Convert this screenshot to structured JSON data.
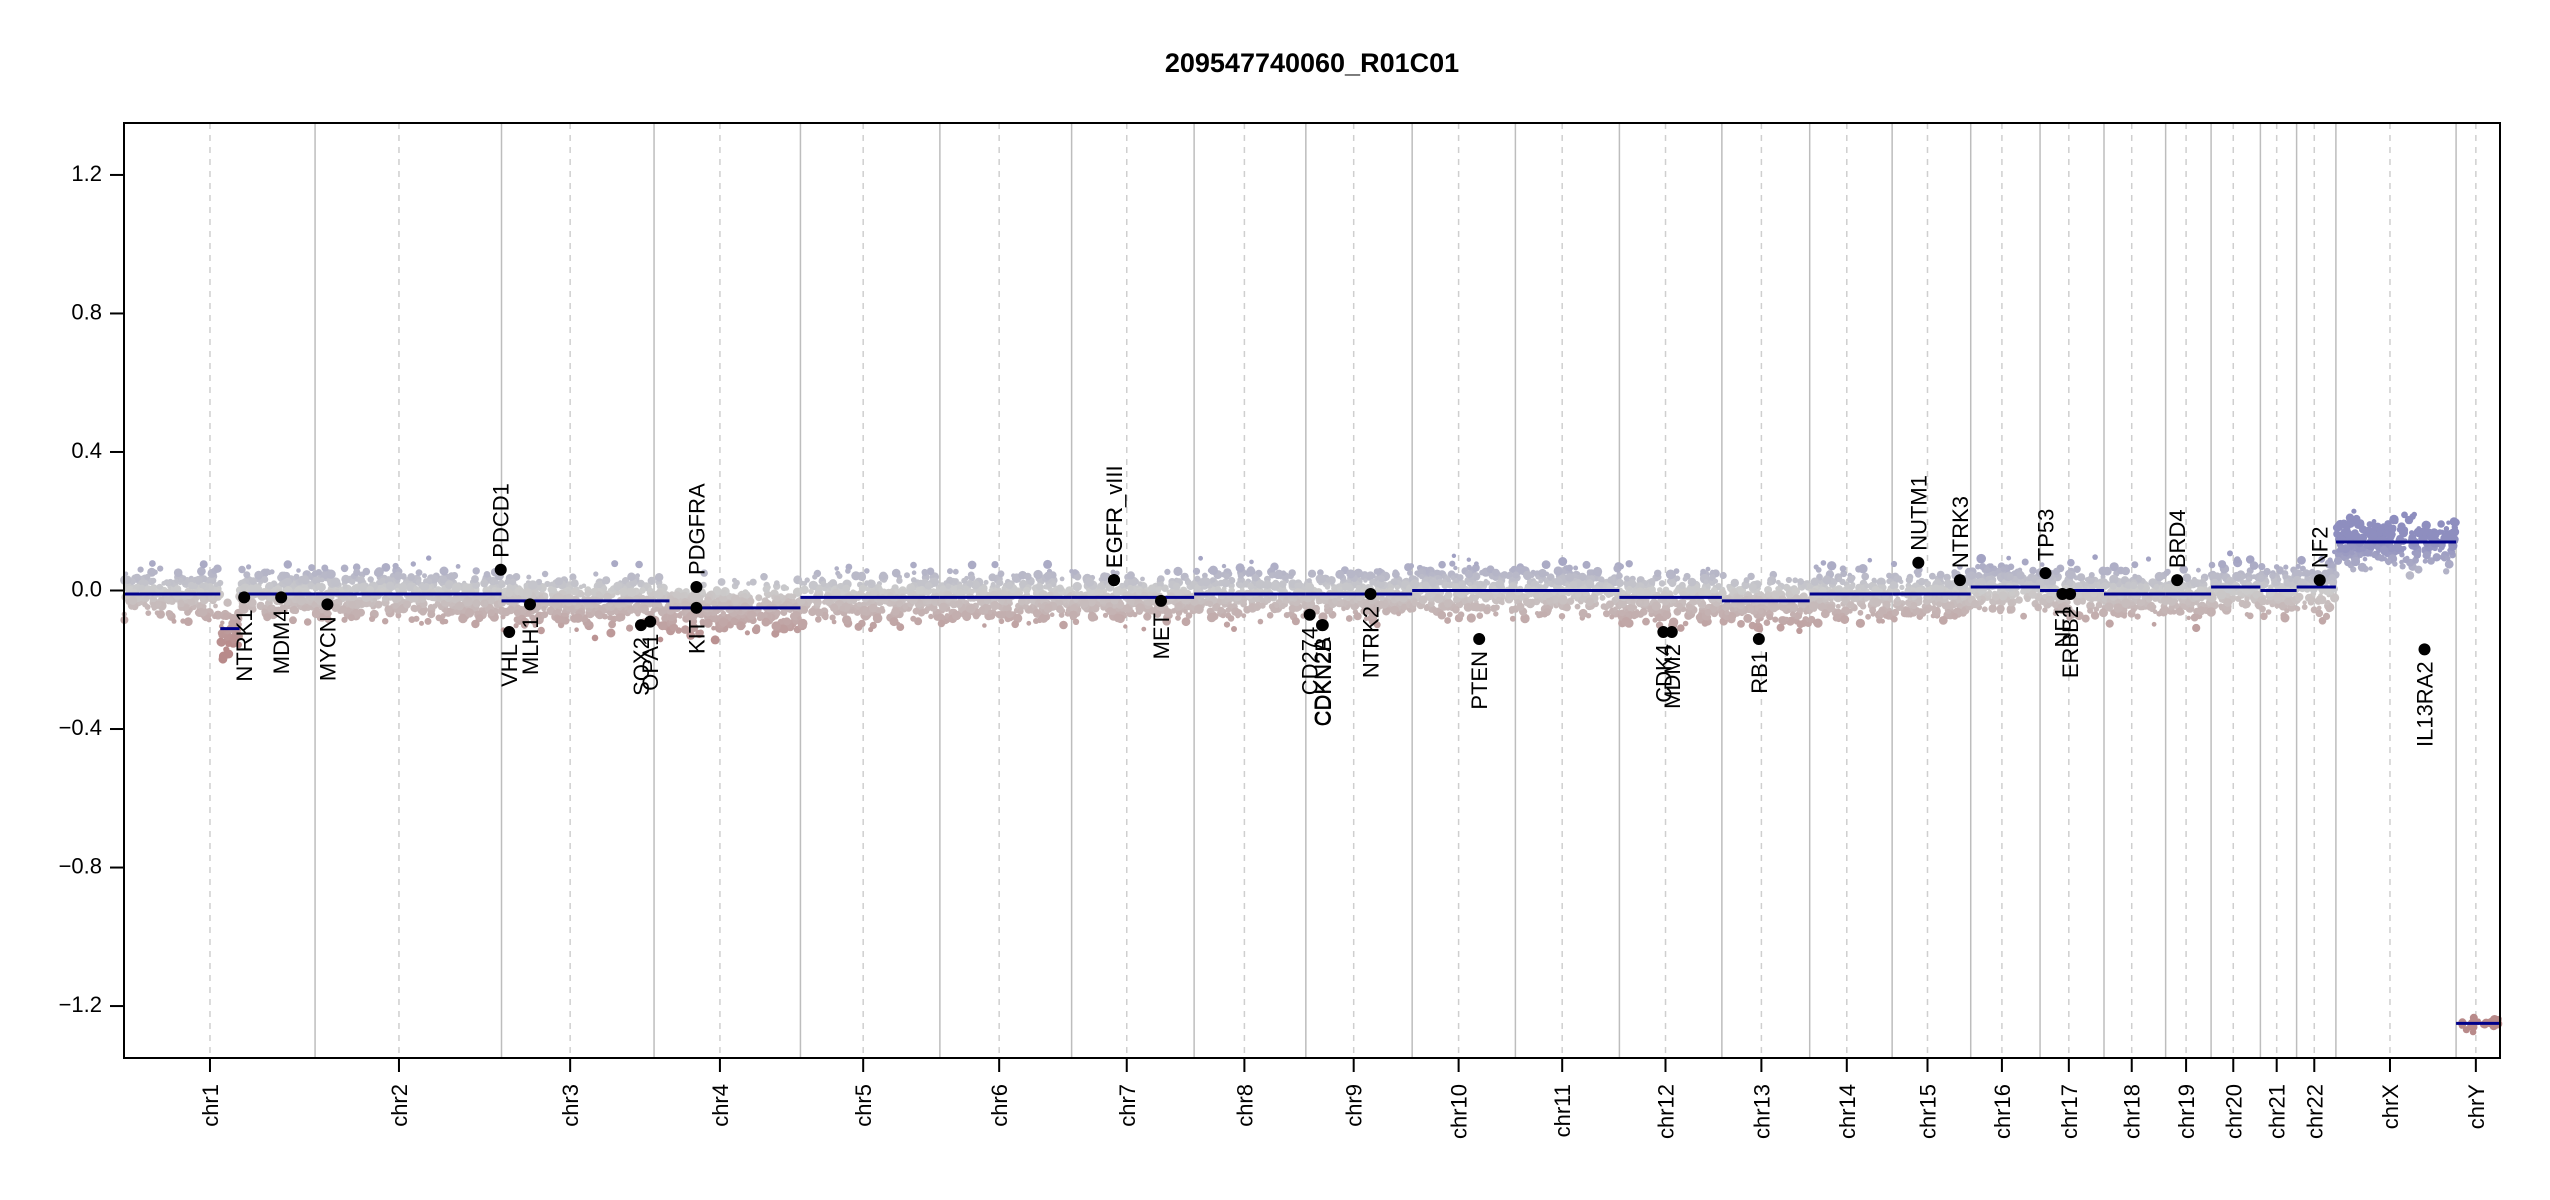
{
  "chart_data": {
    "type": "scatter",
    "title": "209547740060_R01C01",
    "xlabel": "",
    "ylabel": "",
    "ylim": [
      -1.35,
      1.35
    ],
    "yticks": [
      -1.2,
      -0.8,
      -0.4,
      0.0,
      0.4,
      0.8,
      1.2
    ],
    "ytick_labels": [
      "−1.2",
      "−0.8",
      "−0.4",
      "0.0",
      "0.4",
      "0.8",
      "1.2"
    ],
    "grid": false,
    "colors": {
      "gain": "#8e8ebf",
      "neutral": "#cccccc",
      "loss": "#b88a8a",
      "segment": "#00008b",
      "gene_point": "#000000"
    },
    "chromosomes": [
      {
        "name": "chr1",
        "length": 248
      },
      {
        "name": "chr2",
        "length": 242
      },
      {
        "name": "chr3",
        "length": 198
      },
      {
        "name": "chr4",
        "length": 190
      },
      {
        "name": "chr5",
        "length": 181
      },
      {
        "name": "chr6",
        "length": 171
      },
      {
        "name": "chr7",
        "length": 159
      },
      {
        "name": "chr8",
        "length": 145
      },
      {
        "name": "chr9",
        "length": 138
      },
      {
        "name": "chr10",
        "length": 134
      },
      {
        "name": "chr11",
        "length": 135
      },
      {
        "name": "chr12",
        "length": 133
      },
      {
        "name": "chr13",
        "length": 114
      },
      {
        "name": "chr14",
        "length": 107
      },
      {
        "name": "chr15",
        "length": 102
      },
      {
        "name": "chr16",
        "length": 90
      },
      {
        "name": "chr17",
        "length": 83
      },
      {
        "name": "chr18",
        "length": 80
      },
      {
        "name": "chr19",
        "length": 59
      },
      {
        "name": "chr20",
        "length": 64
      },
      {
        "name": "chr21",
        "length": 47
      },
      {
        "name": "chr22",
        "length": 51
      },
      {
        "name": "chrX",
        "length": 156
      },
      {
        "name": "chrY",
        "length": 57
      }
    ],
    "segments": [
      {
        "chr": "chr1",
        "start": 0,
        "end": 125,
        "value": -0.01
      },
      {
        "chr": "chr1",
        "start": 125,
        "end": 150,
        "value": -0.11
      },
      {
        "chr": "chr1",
        "start": 150,
        "end": 248,
        "value": -0.01
      },
      {
        "chr": "chr2",
        "start": 0,
        "end": 242,
        "value": -0.01
      },
      {
        "chr": "chr3",
        "start": 0,
        "end": 198,
        "value": -0.03
      },
      {
        "chr": "chr4",
        "start": 0,
        "end": 20,
        "value": -0.03
      },
      {
        "chr": "chr4",
        "start": 20,
        "end": 190,
        "value": -0.05
      },
      {
        "chr": "chr5",
        "start": 0,
        "end": 181,
        "value": -0.02
      },
      {
        "chr": "chr6",
        "start": 0,
        "end": 171,
        "value": -0.02
      },
      {
        "chr": "chr7",
        "start": 0,
        "end": 159,
        "value": -0.02
      },
      {
        "chr": "chr8",
        "start": 0,
        "end": 145,
        "value": -0.01
      },
      {
        "chr": "chr9",
        "start": 0,
        "end": 138,
        "value": -0.01
      },
      {
        "chr": "chr10",
        "start": 0,
        "end": 134,
        "value": 0.0
      },
      {
        "chr": "chr11",
        "start": 0,
        "end": 135,
        "value": 0.0
      },
      {
        "chr": "chr12",
        "start": 0,
        "end": 133,
        "value": -0.02
      },
      {
        "chr": "chr13",
        "start": 0,
        "end": 114,
        "value": -0.03
      },
      {
        "chr": "chr14",
        "start": 0,
        "end": 107,
        "value": -0.01
      },
      {
        "chr": "chr15",
        "start": 0,
        "end": 102,
        "value": -0.01
      },
      {
        "chr": "chr16",
        "start": 0,
        "end": 90,
        "value": 0.01
      },
      {
        "chr": "chr17",
        "start": 0,
        "end": 83,
        "value": 0.0
      },
      {
        "chr": "chr18",
        "start": 0,
        "end": 80,
        "value": -0.01
      },
      {
        "chr": "chr19",
        "start": 0,
        "end": 59,
        "value": -0.01
      },
      {
        "chr": "chr20",
        "start": 0,
        "end": 64,
        "value": 0.01
      },
      {
        "chr": "chr21",
        "start": 0,
        "end": 47,
        "value": 0.0
      },
      {
        "chr": "chr22",
        "start": 0,
        "end": 51,
        "value": 0.01
      },
      {
        "chr": "chrX",
        "start": 0,
        "end": 156,
        "value": 0.14
      },
      {
        "chr": "chrY",
        "start": 0,
        "end": 57,
        "value": -1.25
      }
    ],
    "genes": [
      {
        "name": "NTRK1",
        "chr": "chr1",
        "pos": 156,
        "value": -0.02,
        "label_side": "below"
      },
      {
        "name": "MDM4",
        "chr": "chr1",
        "pos": 204,
        "value": -0.02,
        "label_side": "below"
      },
      {
        "name": "MYCN",
        "chr": "chr2",
        "pos": 16,
        "value": -0.04,
        "label_side": "below"
      },
      {
        "name": "PDCD1",
        "chr": "chr2",
        "pos": 241,
        "value": 0.06,
        "label_side": "above"
      },
      {
        "name": "VHL",
        "chr": "chr3",
        "pos": 10,
        "value": -0.12,
        "label_side": "below"
      },
      {
        "name": "MLH1",
        "chr": "chr3",
        "pos": 37,
        "value": -0.04,
        "label_side": "below"
      },
      {
        "name": "SOX2",
        "chr": "chr3",
        "pos": 181,
        "value": -0.1,
        "label_side": "below"
      },
      {
        "name": "OPA1",
        "chr": "chr3",
        "pos": 193,
        "value": -0.09,
        "label_side": "below"
      },
      {
        "name": "KIT",
        "chr": "chr4",
        "pos": 55,
        "value": -0.05,
        "label_side": "below"
      },
      {
        "name": "PDGFRA",
        "chr": "chr4",
        "pos": 55,
        "value": 0.01,
        "label_side": "above"
      },
      {
        "name": "EGFR",
        "chr": "chr7",
        "pos": 55,
        "value": 0.03,
        "label_side": "above"
      },
      {
        "name": "EGFR_vIII",
        "chr": "chr7",
        "pos": 55,
        "value": 0.03,
        "label_side": "above"
      },
      {
        "name": "MET",
        "chr": "chr7",
        "pos": 116,
        "value": -0.03,
        "label_side": "below"
      },
      {
        "name": "CD274",
        "chr": "chr9",
        "pos": 5,
        "value": -0.07,
        "label_side": "below"
      },
      {
        "name": "CDKN2A",
        "chr": "chr9",
        "pos": 21,
        "value": -0.1,
        "label_side": "below"
      },
      {
        "name": "CDKN2B",
        "chr": "chr9",
        "pos": 22,
        "value": -0.1,
        "label_side": "below"
      },
      {
        "name": "NTRK2",
        "chr": "chr9",
        "pos": 84,
        "value": -0.01,
        "label_side": "below"
      },
      {
        "name": "PTEN",
        "chr": "chr10",
        "pos": 87,
        "value": -0.14,
        "label_side": "below"
      },
      {
        "name": "CDK4",
        "chr": "chr12",
        "pos": 57,
        "value": -0.12,
        "label_side": "below"
      },
      {
        "name": "MDM2",
        "chr": "chr12",
        "pos": 68,
        "value": -0.12,
        "label_side": "below"
      },
      {
        "name": "RB1",
        "chr": "chr13",
        "pos": 48,
        "value": -0.14,
        "label_side": "below"
      },
      {
        "name": "NUTM1",
        "chr": "chr15",
        "pos": 34,
        "value": 0.08,
        "label_side": "above"
      },
      {
        "name": "NTRK3",
        "chr": "chr15",
        "pos": 88,
        "value": 0.03,
        "label_side": "above"
      },
      {
        "name": "TP53",
        "chr": "chr17",
        "pos": 7,
        "value": 0.05,
        "label_side": "above"
      },
      {
        "name": "NF1",
        "chr": "chr17",
        "pos": 29,
        "value": -0.01,
        "label_side": "below"
      },
      {
        "name": "ERBB2",
        "chr": "chr17",
        "pos": 39,
        "value": -0.01,
        "label_side": "below"
      },
      {
        "name": "BRD4",
        "chr": "chr19",
        "pos": 15,
        "value": 0.03,
        "label_side": "above"
      },
      {
        "name": "NF2",
        "chr": "chr22",
        "pos": 30,
        "value": 0.03,
        "label_side": "above"
      },
      {
        "name": "IL13RA2",
        "chr": "chrX",
        "pos": 115,
        "value": -0.17,
        "label_side": "below"
      }
    ]
  }
}
